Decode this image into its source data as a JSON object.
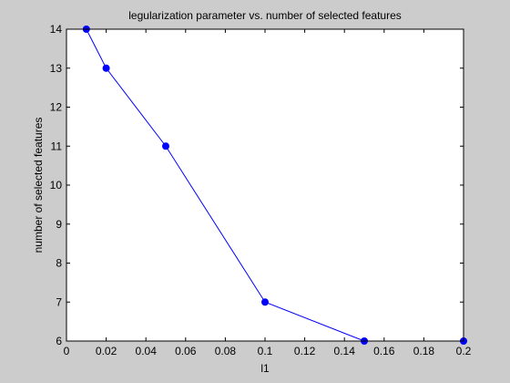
{
  "chart_data": {
    "type": "line",
    "title": "legularization parameter vs. number of selected features",
    "xlabel": "l1",
    "ylabel": "number of selected features",
    "x": [
      0.01,
      0.02,
      0.05,
      0.1,
      0.15,
      0.2
    ],
    "series": [
      {
        "values": [
          14,
          13,
          11,
          7,
          6,
          6
        ]
      }
    ],
    "xlim": [
      0,
      0.2
    ],
    "ylim": [
      6,
      14
    ],
    "xticks": [
      "0",
      "0.02",
      "0.04",
      "0.06",
      "0.08",
      "0.1",
      "0.12",
      "0.14",
      "0.16",
      "0.18",
      "0.2"
    ],
    "yticks": [
      "6",
      "7",
      "8",
      "9",
      "10",
      "11",
      "12",
      "13",
      "14"
    ],
    "grid": false,
    "colors": {
      "line": "#0000ff",
      "marker": "#0000ff",
      "figure_background": "#cccccc",
      "axes_background": "#ffffff"
    }
  }
}
